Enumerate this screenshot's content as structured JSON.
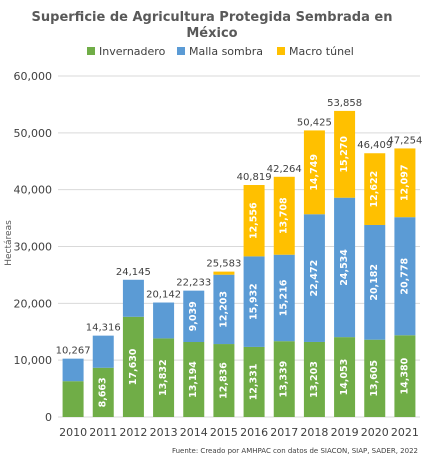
{
  "chart_data": {
    "type": "bar",
    "stacked": true,
    "title_line1": "Superficie de Agricultura Protegida Sembrada en",
    "title_line2": "México",
    "ylabel": "Hectáreas",
    "ylim": [
      0,
      60000
    ],
    "yticks": [
      "0",
      "10,000",
      "20,000",
      "30,000",
      "40,000",
      "50,000",
      "60,000"
    ],
    "grid": true,
    "legend_position": "top",
    "categories": [
      "2010",
      "2011",
      "2012",
      "2013",
      "2014",
      "2015",
      "2016",
      "2017",
      "2018",
      "2019",
      "2020",
      "2021"
    ],
    "series": [
      {
        "name": "Invernadero",
        "color": "#70ad47",
        "values": [
          6300,
          8663,
          17630,
          13832,
          13194,
          12836,
          12331,
          13339,
          13203,
          14053,
          13605,
          14380
        ],
        "labels": [
          "",
          "8,663",
          "17,630",
          "13,832",
          "13,194",
          "12,836",
          "12,331",
          "13,339",
          "13,203",
          "14,053",
          "13,605",
          "14,380"
        ]
      },
      {
        "name": "Malla sombra",
        "color": "#5b9bd5",
        "values": [
          3967,
          5653,
          6515,
          6310,
          9039,
          12203,
          15932,
          15216,
          22472,
          24534,
          20182,
          20778
        ],
        "labels": [
          "",
          "",
          "",
          "",
          "9,039",
          "12,203",
          "15,932",
          "15,216",
          "22,472",
          "24,534",
          "20,182",
          "20,778"
        ]
      },
      {
        "name": "Macro túnel",
        "color": "#ffc000",
        "values": [
          0,
          0,
          0,
          0,
          0,
          544,
          12556,
          13708,
          14749,
          15270,
          12622,
          12097
        ],
        "labels": [
          "",
          "",
          "",
          "",
          "",
          "",
          "12,556",
          "13,708",
          "14,749",
          "15,270",
          "12,622",
          "12,097"
        ]
      }
    ],
    "totals": [
      "10,267",
      "14,316",
      "24,145",
      "20,142",
      "22,233",
      "25,583",
      "40,819",
      "42,264",
      "50,425",
      "53,858",
      "46,409",
      "47,254"
    ],
    "source": "Fuente: Creado por AMHPAC con datos de SIACON, SIAP, SADER, 2022"
  }
}
